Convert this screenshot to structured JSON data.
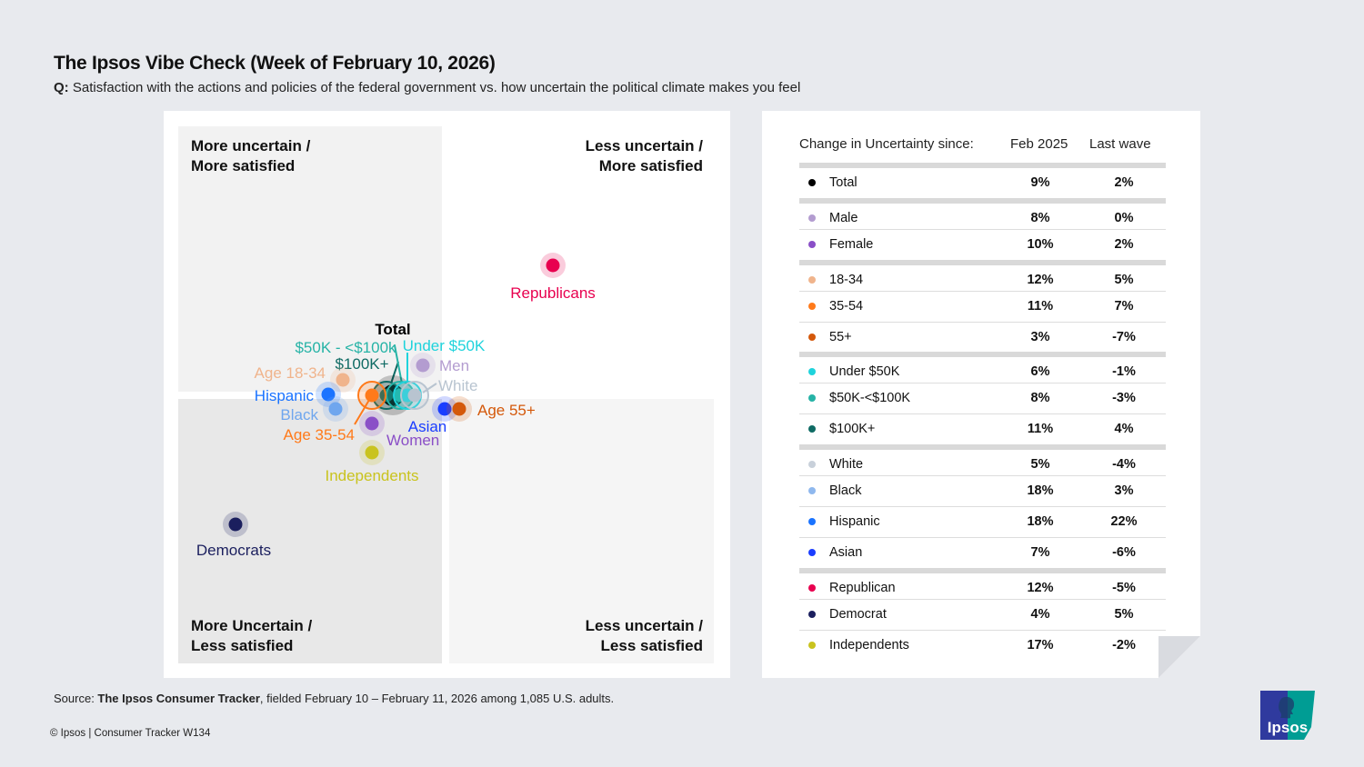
{
  "header": {
    "title": "The Ipsos Vibe Check (Week of February 10, 2026)",
    "q_prefix": "Q:",
    "question": "Satisfaction with the actions and policies of the federal government vs. how uncertain the political climate makes you feel"
  },
  "quadrants": {
    "top_left": [
      "More uncertain /",
      "More satisfied"
    ],
    "top_right": [
      "Less uncertain /",
      "More satisfied"
    ],
    "bottom_left": [
      "More Uncertain /",
      "Less satisfied"
    ],
    "bottom_right": [
      "Less uncertain /",
      "Less satisfied"
    ]
  },
  "chart_data": {
    "type": "scatter",
    "quadrant_background": {
      "top_left": "#f2f2f2",
      "top_right": "#ffffff",
      "bottom_left": "#e8e8e8",
      "bottom_right": "#f5f5f5"
    },
    "points": [
      {
        "label": "Total",
        "color": "#000000"
      },
      {
        "label": "$100K+",
        "color": "#0f6b64"
      },
      {
        "label": "$50K - <$100k",
        "color": "#26b3a6"
      },
      {
        "label": "Under $50K",
        "color": "#1fd3dc"
      },
      {
        "label": "White",
        "color": "#b8c4d0"
      },
      {
        "label": "Men",
        "color": "#b39cd0"
      },
      {
        "label": "Age 18-34",
        "color": "#f0b48c"
      },
      {
        "label": "Hispanic",
        "color": "#1a73ff"
      },
      {
        "label": "Black",
        "color": "#6fa6ee"
      },
      {
        "label": "Age 35-54",
        "color": "#ff7a1a"
      },
      {
        "label": "Women",
        "color": "#8a4fc7"
      },
      {
        "label": "Asian",
        "color": "#1a3dff"
      },
      {
        "label": "Age 55+",
        "color": "#d4580a"
      },
      {
        "label": "Independents",
        "color": "#c9c31e"
      },
      {
        "label": "Republicans",
        "color": "#e8004f"
      },
      {
        "label": "Democrats",
        "color": "#1b1f5e"
      }
    ]
  },
  "table": {
    "headers": [
      "Change in Uncertainty since:",
      "Feb 2025",
      "Last wave"
    ],
    "rows": [
      {
        "label": "Total",
        "feb2025": "9%",
        "last": "2%",
        "color": "#000000"
      },
      {
        "label": "Male",
        "feb2025": "8%",
        "last": "0%",
        "color": "#b39cd0"
      },
      {
        "label": "Female",
        "feb2025": "10%",
        "last": "2%",
        "color": "#8a4fc7"
      },
      {
        "label": "18-34",
        "feb2025": "12%",
        "last": "5%",
        "color": "#f0b48c"
      },
      {
        "label": "35-54",
        "feb2025": "11%",
        "last": "7%",
        "color": "#ff7a1a"
      },
      {
        "label": "55+",
        "feb2025": "3%",
        "last": "-7%",
        "color": "#d4580a"
      },
      {
        "label": "Under $50K",
        "feb2025": "6%",
        "last": "-1%",
        "color": "#1fd3dc"
      },
      {
        "label": "$50K-<$100K",
        "feb2025": "8%",
        "last": "-3%",
        "color": "#26b3a6"
      },
      {
        "label": "$100K+",
        "feb2025": "11%",
        "last": "4%",
        "color": "#0f6b64"
      },
      {
        "label": "White",
        "feb2025": "5%",
        "last": "-4%",
        "color": "#c8d0da"
      },
      {
        "label": "Black",
        "feb2025": "18%",
        "last": "3%",
        "color": "#8fb8ee"
      },
      {
        "label": "Hispanic",
        "feb2025": "18%",
        "last": "22%",
        "color": "#1a73ff"
      },
      {
        "label": "Asian",
        "feb2025": "7%",
        "last": "-6%",
        "color": "#1a3dff"
      },
      {
        "label": "Republican",
        "feb2025": "12%",
        "last": "-5%",
        "color": "#e8004f"
      },
      {
        "label": "Democrat",
        "feb2025": "4%",
        "last": "5%",
        "color": "#1b1f5e"
      },
      {
        "label": "Independents",
        "feb2025": "17%",
        "last": "-2%",
        "color": "#c9c31e"
      }
    ]
  },
  "footer": {
    "source_prefix": "Source: ",
    "source_bold": "The Ipsos Consumer Tracker",
    "source_rest": ", fielded February 10 – February 11, 2026 among 1,085 U.S. adults.",
    "copyright": "© Ipsos | Consumer Tracker W134"
  },
  "logo": {
    "text": "Ipsos",
    "colors": [
      "#2f3a9e",
      "#009d94"
    ]
  }
}
